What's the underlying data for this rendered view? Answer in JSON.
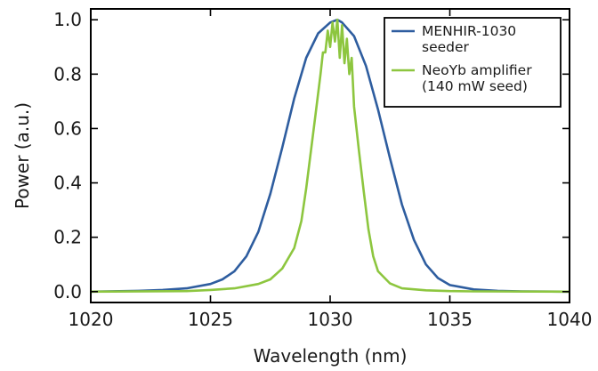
{
  "chart_data": {
    "type": "line",
    "title": "",
    "xlabel": "Wavelength (nm)",
    "ylabel": "Power (a.u.)",
    "xlim": [
      1020,
      1040
    ],
    "ylim": [
      -0.04,
      1.04
    ],
    "x_ticks": [
      1020,
      1025,
      1030,
      1035,
      1040
    ],
    "y_ticks": [
      0.0,
      0.2,
      0.4,
      0.6,
      0.8,
      1.0
    ],
    "grid": false,
    "legend_position": "top-right",
    "series": [
      {
        "name_lines": [
          "MENHIR-1030",
          "seeder"
        ],
        "color": "#2e5d9f",
        "x": [
          1020,
          1022,
          1023,
          1024,
          1025,
          1025.5,
          1026,
          1026.5,
          1027,
          1027.5,
          1028,
          1028.5,
          1029,
          1029.5,
          1030,
          1030.3,
          1030.5,
          1031,
          1031.5,
          1032,
          1032.5,
          1033,
          1033.5,
          1034,
          1034.5,
          1035,
          1036,
          1037,
          1038,
          1040
        ],
        "y": [
          0.0,
          0.003,
          0.006,
          0.012,
          0.028,
          0.045,
          0.075,
          0.13,
          0.22,
          0.36,
          0.53,
          0.71,
          0.86,
          0.95,
          0.99,
          1.0,
          0.99,
          0.94,
          0.83,
          0.67,
          0.49,
          0.32,
          0.19,
          0.1,
          0.05,
          0.024,
          0.008,
          0.003,
          0.001,
          0.0
        ]
      },
      {
        "name_lines": [
          "NeoYb amplifier",
          "(140 mW seed)"
        ],
        "color": "#8dc63f",
        "x": [
          1020,
          1024,
          1025,
          1026,
          1027,
          1027.5,
          1028,
          1028.5,
          1028.8,
          1029.0,
          1029.2,
          1029.4,
          1029.6,
          1029.7,
          1029.8,
          1029.9,
          1030.0,
          1030.1,
          1030.2,
          1030.3,
          1030.4,
          1030.5,
          1030.6,
          1030.7,
          1030.8,
          1030.9,
          1031.0,
          1031.2,
          1031.4,
          1031.6,
          1031.8,
          1032.0,
          1032.5,
          1033,
          1034,
          1035,
          1036,
          1040
        ],
        "y": [
          0.0,
          0.002,
          0.006,
          0.012,
          0.028,
          0.045,
          0.085,
          0.16,
          0.26,
          0.38,
          0.52,
          0.66,
          0.8,
          0.88,
          0.88,
          0.96,
          0.9,
          0.99,
          0.92,
          1.0,
          0.86,
          0.98,
          0.84,
          0.93,
          0.8,
          0.86,
          0.68,
          0.52,
          0.37,
          0.23,
          0.13,
          0.075,
          0.03,
          0.012,
          0.005,
          0.002,
          0.001,
          0.0
        ]
      }
    ]
  }
}
